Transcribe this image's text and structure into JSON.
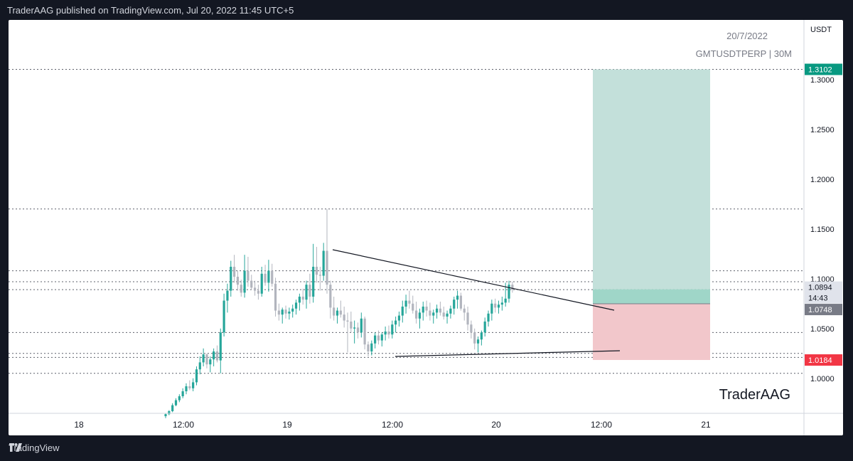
{
  "header": {
    "published": "TraderAAG published on TradingView.com, Jul 20, 2022 11:45 UTC+5"
  },
  "footer": {
    "brand": "TradingView"
  },
  "chart_info": {
    "date": "20/7/2022",
    "symbol": "GMTUSDTPERP | 30M",
    "watermark": "TraderAAG"
  },
  "chart_data": {
    "type": "candlestick",
    "currency": "USDT",
    "y_ticks": [
      "1.3000",
      "1.2500",
      "1.2000",
      "1.1500",
      "1.1000",
      "1.0500",
      "1.0000"
    ],
    "x_ticks": [
      "18",
      "12:00",
      "19",
      "12:00",
      "20",
      "12:00",
      "21"
    ],
    "ylim": [
      0.962,
      1.348
    ],
    "price_labels": [
      {
        "value": "1.3102",
        "type": "target",
        "color": "#089981"
      },
      {
        "value": "1.0894",
        "type": "last",
        "color": "#787b86"
      },
      {
        "value": "14:43",
        "type": "countdown",
        "color": "#787b86"
      },
      {
        "value": "1.0748",
        "type": "entry",
        "color": "#787b86"
      },
      {
        "value": "1.0184",
        "type": "stop",
        "color": "#f23645"
      }
    ],
    "horizontal_levels": [
      1.3102,
      1.17,
      1.108,
      1.097,
      1.089,
      1.046,
      1.025,
      1.021,
      1.005
    ],
    "long_position": {
      "entry": 1.0748,
      "target": 1.3102,
      "stop": 1.0184
    },
    "trendlines": [
      {
        "from": [
          1.127
        ],
        "to": [
          1.0755
        ]
      },
      {
        "from": [
          1.0225
        ],
        "to": [
          1.0275
        ]
      }
    ],
    "candles": [
      [
        0.962,
        0.965,
        0.96,
        0.964
      ],
      [
        0.964,
        0.968,
        0.963,
        0.967
      ],
      [
        0.967,
        0.975,
        0.966,
        0.973
      ],
      [
        0.973,
        0.98,
        0.972,
        0.978
      ],
      [
        0.978,
        0.984,
        0.976,
        0.982
      ],
      [
        0.982,
        0.99,
        0.98,
        0.987
      ],
      [
        0.987,
        0.995,
        0.984,
        0.992
      ],
      [
        0.992,
        0.998,
        0.988,
        0.99
      ],
      [
        0.99,
        1.0,
        0.987,
        0.996
      ],
      [
        0.996,
        1.012,
        0.993,
        1.009
      ],
      [
        1.009,
        1.022,
        1.004,
        1.016
      ],
      [
        1.016,
        1.03,
        1.012,
        1.024
      ],
      [
        1.024,
        1.025,
        1.01,
        1.014
      ],
      [
        1.014,
        1.022,
        1.006,
        1.019
      ],
      [
        1.019,
        1.03,
        1.012,
        1.027
      ],
      [
        1.027,
        1.033,
        1.016,
        1.018
      ],
      [
        1.018,
        1.05,
        1.005,
        1.046
      ],
      [
        1.046,
        1.085,
        1.042,
        1.078
      ],
      [
        1.078,
        1.095,
        1.066,
        1.088
      ],
      [
        1.088,
        1.118,
        1.082,
        1.112
      ],
      [
        1.112,
        1.124,
        1.096,
        1.102
      ],
      [
        1.102,
        1.108,
        1.088,
        1.094
      ],
      [
        1.094,
        1.099,
        1.082,
        1.086
      ],
      [
        1.086,
        1.124,
        1.081,
        1.108
      ],
      [
        1.108,
        1.122,
        1.092,
        1.098
      ],
      [
        1.098,
        1.104,
        1.089,
        1.091
      ],
      [
        1.091,
        1.098,
        1.083,
        1.088
      ],
      [
        1.088,
        1.094,
        1.079,
        1.085
      ],
      [
        1.085,
        1.112,
        1.082,
        1.105
      ],
      [
        1.105,
        1.114,
        1.093,
        1.096
      ],
      [
        1.096,
        1.119,
        1.087,
        1.108
      ],
      [
        1.108,
        1.115,
        1.092,
        1.095
      ],
      [
        1.095,
        1.101,
        1.062,
        1.068
      ],
      [
        1.068,
        1.075,
        1.058,
        1.064
      ],
      [
        1.064,
        1.071,
        1.055,
        1.069
      ],
      [
        1.069,
        1.073,
        1.06,
        1.065
      ],
      [
        1.065,
        1.071,
        1.059,
        1.067
      ],
      [
        1.067,
        1.074,
        1.061,
        1.07
      ],
      [
        1.07,
        1.079,
        1.064,
        1.076
      ],
      [
        1.076,
        1.085,
        1.068,
        1.082
      ],
      [
        1.082,
        1.09,
        1.074,
        1.079
      ],
      [
        1.079,
        1.098,
        1.07,
        1.094
      ],
      [
        1.094,
        1.105,
        1.075,
        1.082
      ],
      [
        1.082,
        1.135,
        1.076,
        1.112
      ],
      [
        1.112,
        1.132,
        1.096,
        1.104
      ],
      [
        1.104,
        1.112,
        1.088,
        1.103
      ],
      [
        1.103,
        1.136,
        1.098,
        1.128
      ],
      [
        1.128,
        1.17,
        1.085,
        1.094
      ],
      [
        1.094,
        1.098,
        1.06,
        1.071
      ],
      [
        1.071,
        1.082,
        1.058,
        1.063
      ],
      [
        1.063,
        1.071,
        1.055,
        1.068
      ],
      [
        1.068,
        1.078,
        1.061,
        1.064
      ],
      [
        1.064,
        1.072,
        1.051,
        1.058
      ],
      [
        1.058,
        1.066,
        1.026,
        1.057
      ],
      [
        1.057,
        1.067,
        1.046,
        1.05
      ],
      [
        1.05,
        1.058,
        1.035,
        1.051
      ],
      [
        1.051,
        1.056,
        1.04,
        1.046
      ],
      [
        1.046,
        1.066,
        1.041,
        1.06
      ],
      [
        1.06,
        1.062,
        1.029,
        1.034
      ],
      [
        1.034,
        1.037,
        1.022,
        1.027
      ],
      [
        1.027,
        1.038,
        1.023,
        1.035
      ],
      [
        1.035,
        1.046,
        1.03,
        1.043
      ],
      [
        1.043,
        1.048,
        1.034,
        1.038
      ],
      [
        1.038,
        1.046,
        1.032,
        1.044
      ],
      [
        1.044,
        1.052,
        1.038,
        1.047
      ],
      [
        1.047,
        1.053,
        1.04,
        1.044
      ],
      [
        1.044,
        1.058,
        1.04,
        1.054
      ],
      [
        1.054,
        1.062,
        1.046,
        1.058
      ],
      [
        1.058,
        1.067,
        1.052,
        1.063
      ],
      [
        1.063,
        1.078,
        1.056,
        1.072
      ],
      [
        1.072,
        1.084,
        1.065,
        1.078
      ],
      [
        1.078,
        1.088,
        1.07,
        1.075
      ],
      [
        1.075,
        1.083,
        1.065,
        1.068
      ],
      [
        1.068,
        1.077,
        1.055,
        1.06
      ],
      [
        1.06,
        1.07,
        1.05,
        1.066
      ],
      [
        1.066,
        1.077,
        1.058,
        1.072
      ],
      [
        1.072,
        1.078,
        1.062,
        1.068
      ],
      [
        1.068,
        1.076,
        1.058,
        1.063
      ],
      [
        1.063,
        1.069,
        1.055,
        1.066
      ],
      [
        1.066,
        1.074,
        1.06,
        1.07
      ],
      [
        1.07,
        1.077,
        1.063,
        1.066
      ],
      [
        1.066,
        1.072,
        1.059,
        1.062
      ],
      [
        1.062,
        1.068,
        1.055,
        1.065
      ],
      [
        1.065,
        1.073,
        1.06,
        1.07
      ],
      [
        1.07,
        1.082,
        1.064,
        1.079
      ],
      [
        1.079,
        1.088,
        1.07,
        1.083
      ],
      [
        1.083,
        1.086,
        1.068,
        1.07
      ],
      [
        1.07,
        1.074,
        1.058,
        1.066
      ],
      [
        1.066,
        1.072,
        1.048,
        1.054
      ],
      [
        1.054,
        1.058,
        1.04,
        1.046
      ],
      [
        1.046,
        1.05,
        1.029,
        1.035
      ],
      [
        1.035,
        1.042,
        1.026,
        1.039
      ],
      [
        1.039,
        1.048,
        1.033,
        1.046
      ],
      [
        1.046,
        1.061,
        1.042,
        1.057
      ],
      [
        1.057,
        1.068,
        1.052,
        1.065
      ],
      [
        1.065,
        1.079,
        1.058,
        1.075
      ],
      [
        1.075,
        1.08,
        1.066,
        1.071
      ],
      [
        1.071,
        1.078,
        1.065,
        1.074
      ],
      [
        1.074,
        1.082,
        1.068,
        1.076
      ],
      [
        1.076,
        1.096,
        1.072,
        1.08
      ],
      [
        1.08,
        1.098,
        1.076,
        1.094
      ],
      [
        1.094,
        1.097,
        1.086,
        1.089
      ]
    ]
  },
  "colors": {
    "up": "#26a69a",
    "down": "#b2b5be",
    "target_zone": "#c3e0da",
    "stop_zone": "#f2c7cb",
    "entry_zone": "#9fd6c8",
    "background": "#ffffff",
    "frame": "#131722"
  }
}
